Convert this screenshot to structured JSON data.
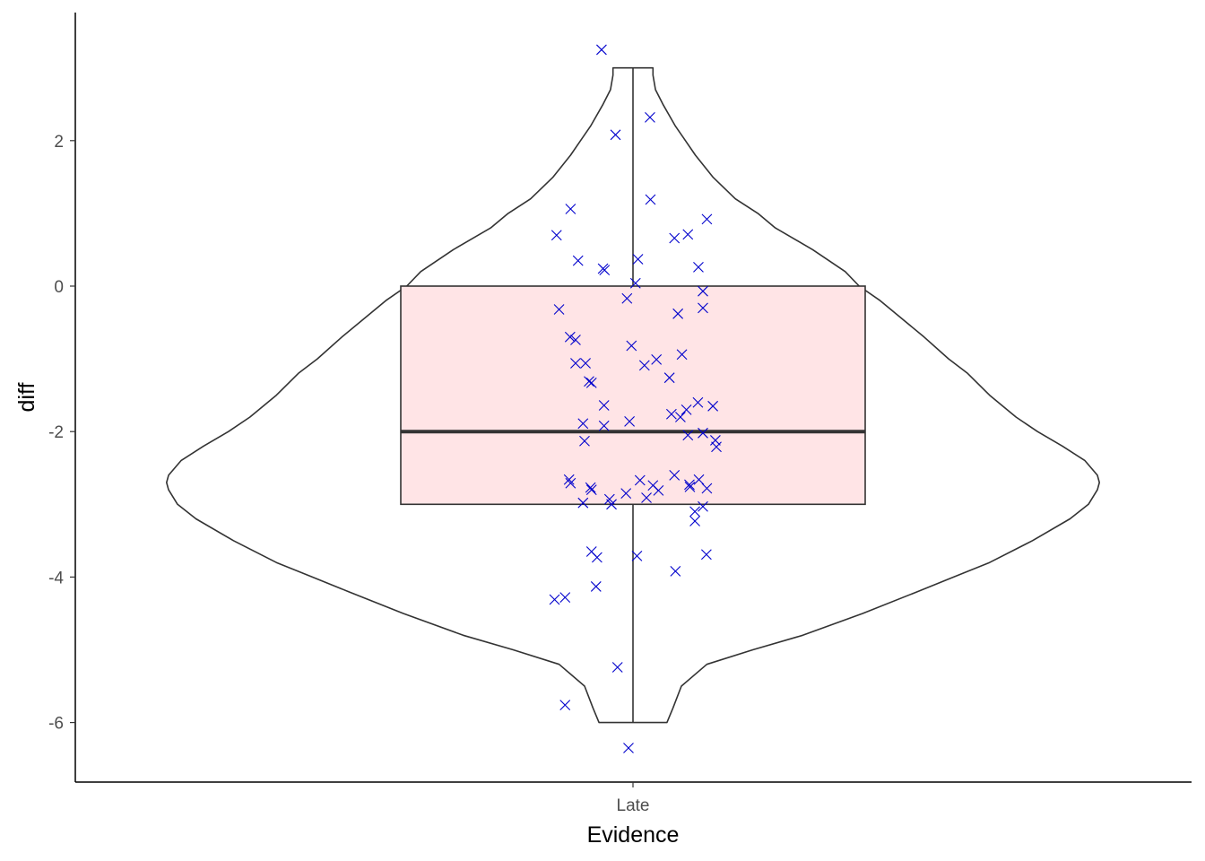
{
  "chart_data": {
    "type": "violin",
    "xlabel": "Evidence",
    "ylabel": "diff",
    "categories": [
      "Late"
    ],
    "yticks": [
      -6,
      -4,
      -2,
      0,
      2
    ],
    "ylim": [
      -6.7,
      3.5
    ],
    "grid": false,
    "legend": "none",
    "colors": {
      "outline": "#333333",
      "box_fill": "#ffe4e6",
      "points": "#0000cc",
      "axis": "#000000"
    },
    "box": {
      "q1": -3,
      "median": -2,
      "q3": 0,
      "whisker_low": -6,
      "whisker_high": 3
    },
    "violin": {
      "y": [
        -6.0,
        -5.8,
        -5.5,
        -5.2,
        -5.0,
        -4.8,
        -4.5,
        -4.2,
        -4.0,
        -3.8,
        -3.5,
        -3.2,
        -3.0,
        -2.8,
        -2.7,
        -2.6,
        -2.4,
        -2.2,
        -2.0,
        -1.8,
        -1.5,
        -1.2,
        -1.0,
        -0.7,
        -0.4,
        -0.2,
        0.0,
        0.2,
        0.5,
        0.8,
        1.0,
        1.2,
        1.5,
        1.8,
        2.0,
        2.2,
        2.5,
        2.7,
        2.9,
        3.0
      ],
      "halfwidth": [
        0.068,
        0.08,
        0.097,
        0.148,
        0.24,
        0.34,
        0.46,
        0.57,
        0.642,
        0.714,
        0.8,
        0.875,
        0.912,
        0.93,
        0.934,
        0.93,
        0.905,
        0.86,
        0.81,
        0.767,
        0.714,
        0.67,
        0.632,
        0.583,
        0.53,
        0.495,
        0.453,
        0.425,
        0.36,
        0.285,
        0.25,
        0.205,
        0.16,
        0.125,
        0.105,
        0.085,
        0.06,
        0.045,
        0.04,
        0.04
      ]
    },
    "points": [
      {
        "x": -0.063,
        "y": 3.25
      },
      {
        "x": -0.035,
        "y": 2.08
      },
      {
        "x": 0.034,
        "y": 2.32
      },
      {
        "x": -0.125,
        "y": 1.06
      },
      {
        "x": 0.035,
        "y": 1.19
      },
      {
        "x": 0.148,
        "y": 0.92
      },
      {
        "x": -0.153,
        "y": 0.7
      },
      {
        "x": 0.083,
        "y": 0.66
      },
      {
        "x": 0.11,
        "y": 0.71
      },
      {
        "x": -0.11,
        "y": 0.35
      },
      {
        "x": -0.06,
        "y": 0.24
      },
      {
        "x": -0.057,
        "y": 0.22
      },
      {
        "x": 0.01,
        "y": 0.37
      },
      {
        "x": 0.131,
        "y": 0.26
      },
      {
        "x": 0.005,
        "y": 0.04
      },
      {
        "x": 0.14,
        "y": -0.07
      },
      {
        "x": -0.148,
        "y": -0.32
      },
      {
        "x": -0.012,
        "y": -0.17
      },
      {
        "x": 0.09,
        "y": -0.38
      },
      {
        "x": 0.14,
        "y": -0.3
      },
      {
        "x": -0.126,
        "y": -0.7
      },
      {
        "x": -0.115,
        "y": -0.74
      },
      {
        "x": -0.003,
        "y": -0.82
      },
      {
        "x": 0.098,
        "y": -0.94
      },
      {
        "x": -0.115,
        "y": -1.06
      },
      {
        "x": -0.095,
        "y": -1.06
      },
      {
        "x": 0.023,
        "y": -1.09
      },
      {
        "x": 0.047,
        "y": -1.01
      },
      {
        "x": -0.088,
        "y": -1.31
      },
      {
        "x": -0.083,
        "y": -1.33
      },
      {
        "x": 0.073,
        "y": -1.26
      },
      {
        "x": -0.058,
        "y": -1.64
      },
      {
        "x": 0.13,
        "y": -1.6
      },
      {
        "x": 0.16,
        "y": -1.65
      },
      {
        "x": 0.077,
        "y": -1.76
      },
      {
        "x": 0.095,
        "y": -1.8
      },
      {
        "x": 0.107,
        "y": -1.7
      },
      {
        "x": -0.1,
        "y": -1.89
      },
      {
        "x": -0.058,
        "y": -1.92
      },
      {
        "x": -0.007,
        "y": -1.86
      },
      {
        "x": -0.097,
        "y": -2.13
      },
      {
        "x": 0.11,
        "y": -2.05
      },
      {
        "x": 0.14,
        "y": -2.02
      },
      {
        "x": 0.165,
        "y": -2.12
      },
      {
        "x": 0.167,
        "y": -2.21
      },
      {
        "x": -0.128,
        "y": -2.66
      },
      {
        "x": -0.125,
        "y": -2.71
      },
      {
        "x": -0.085,
        "y": -2.77
      },
      {
        "x": -0.083,
        "y": -2.8
      },
      {
        "x": 0.014,
        "y": -2.67
      },
      {
        "x": 0.04,
        "y": -2.74
      },
      {
        "x": 0.051,
        "y": -2.81
      },
      {
        "x": 0.083,
        "y": -2.6
      },
      {
        "x": 0.113,
        "y": -2.73
      },
      {
        "x": 0.114,
        "y": -2.76
      },
      {
        "x": 0.132,
        "y": -2.66
      },
      {
        "x": 0.148,
        "y": -2.78
      },
      {
        "x": -0.1,
        "y": -2.98
      },
      {
        "x": -0.047,
        "y": -2.93
      },
      {
        "x": -0.043,
        "y": -3.0
      },
      {
        "x": -0.014,
        "y": -2.85
      },
      {
        "x": 0.027,
        "y": -2.91
      },
      {
        "x": 0.124,
        "y": -3.1
      },
      {
        "x": 0.14,
        "y": -3.03
      },
      {
        "x": 0.124,
        "y": -3.23
      },
      {
        "x": -0.083,
        "y": -3.65
      },
      {
        "x": -0.072,
        "y": -3.73
      },
      {
        "x": 0.008,
        "y": -3.71
      },
      {
        "x": 0.147,
        "y": -3.69
      },
      {
        "x": 0.085,
        "y": -3.92
      },
      {
        "x": -0.074,
        "y": -4.13
      },
      {
        "x": -0.157,
        "y": -4.31
      },
      {
        "x": -0.136,
        "y": -4.28
      },
      {
        "x": -0.031,
        "y": -5.24
      },
      {
        "x": -0.136,
        "y": -5.76
      },
      {
        "x": -0.009,
        "y": -6.35
      }
    ]
  }
}
